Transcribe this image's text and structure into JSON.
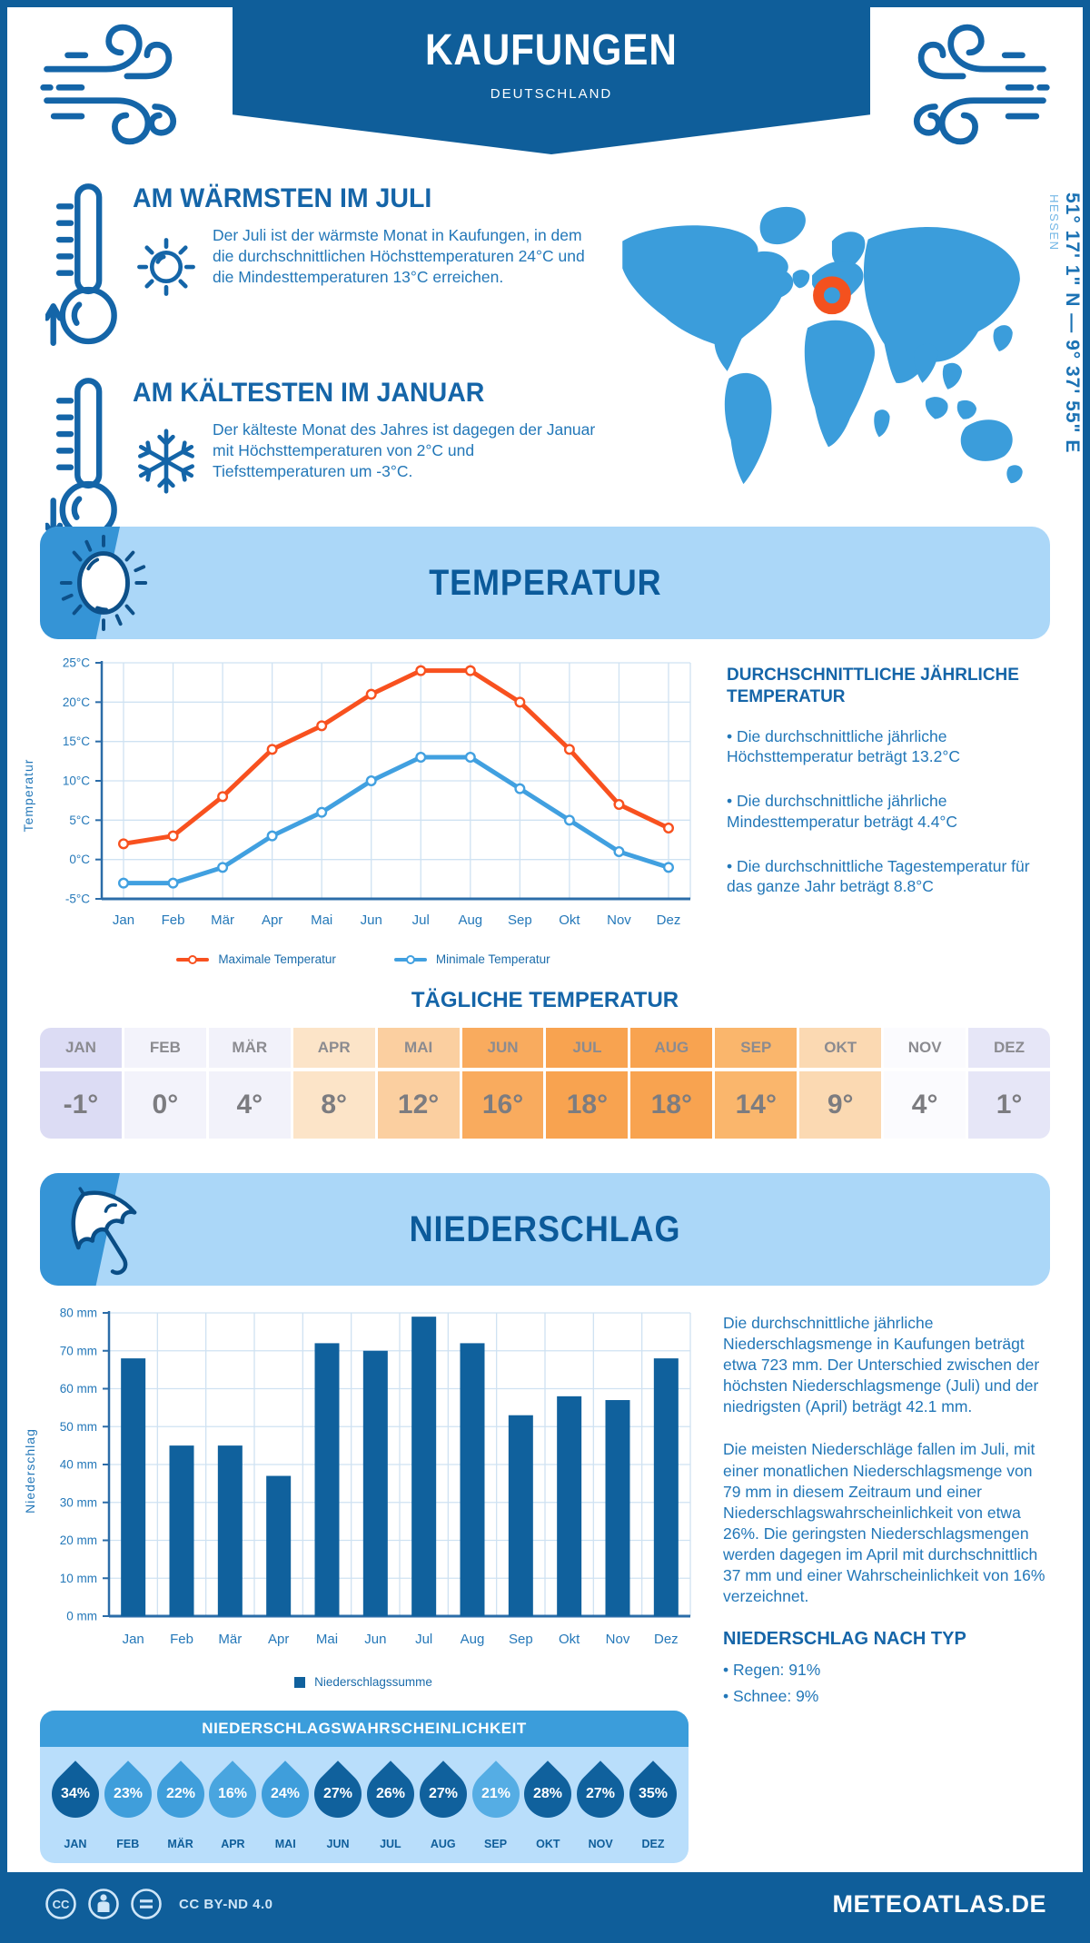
{
  "header": {
    "title": "KAUFUNGEN",
    "subtitle": "DEUTSCHLAND"
  },
  "intro": {
    "warm": {
      "title": "AM WÄRMSTEN IM JULI",
      "text": "Der Juli ist der wärmste Monat in Kaufungen, in dem die durchschnittlichen Höchsttemperaturen 24°C und die Mindesttemperaturen 13°C erreichen."
    },
    "cold": {
      "title": "AM KÄLTESTEN IM JANUAR",
      "text": "Der kälteste Monat des Jahres ist dagegen der Januar mit Höchsttemperaturen von 2°C und Tiefsttemperaturen um -3°C."
    }
  },
  "map": {
    "coords": "51° 17' 1\" N — 9° 37' 55\" E",
    "region": "HESSEN",
    "marker_color": "#f4511e",
    "land_color": "#3b9ddb"
  },
  "temperature": {
    "banner": "TEMPERATUR",
    "aside_title": "DURCHSCHNITTLICHE JÄHRLICHE TEMPERATUR",
    "bullets": [
      "• Die durchschnittliche jährliche Höchsttemperatur beträgt 13.2°C",
      "• Die durchschnittliche jährliche Mindesttemperatur beträgt 4.4°C",
      "• Die durchschnittliche Tagestemperatur für das ganze Jahr beträgt 8.8°C"
    ],
    "daily_title": "TÄGLICHE TEMPERATUR",
    "table": {
      "months": [
        "JAN",
        "FEB",
        "MÄR",
        "APR",
        "MAI",
        "JUN",
        "JUL",
        "AUG",
        "SEP",
        "OKT",
        "NOV",
        "DEZ"
      ],
      "values": [
        "-1°",
        "0°",
        "4°",
        "8°",
        "12°",
        "16°",
        "18°",
        "18°",
        "14°",
        "9°",
        "4°",
        "1°"
      ],
      "colors": [
        "#dcdcf4",
        "#f3f3fb",
        "#f2f2fa",
        "#fce4c8",
        "#fbcfa0",
        "#f9ab5e",
        "#f8a350",
        "#f8a350",
        "#fab66c",
        "#fbd9b2",
        "#fbfbfe",
        "#e6e6f7"
      ]
    }
  },
  "precipitation": {
    "banner": "NIEDERSCHLAG",
    "para1": "Die durchschnittliche jährliche Niederschlagsmenge in Kaufungen beträgt etwa 723 mm. Der Unterschied zwischen der höchsten Niederschlagsmenge (Juli) und der niedrigsten (April) beträgt 42.1 mm.",
    "para2": "Die meisten Niederschläge fallen im Juli, mit einer monatlichen Niederschlagsmenge von 79 mm in diesem Zeitraum und einer Niederschlagswahrscheinlichkeit von etwa 26%. Die geringsten Niederschlagsmengen werden dagegen im April mit durchschnittlich 37 mm und einer Wahrscheinlichkeit von 16% verzeichnet.",
    "type_title": "NIEDERSCHLAG NACH TYP",
    "types": [
      "• Regen: 91%",
      "• Schnee: 9%"
    ]
  },
  "probability": {
    "title": "NIEDERSCHLAGSWAHRSCHEINLICHKEIT",
    "months": [
      "JAN",
      "FEB",
      "MÄR",
      "APR",
      "MAI",
      "JUN",
      "JUL",
      "AUG",
      "SEP",
      "OKT",
      "NOV",
      "DEZ"
    ],
    "values": [
      "34%",
      "23%",
      "22%",
      "16%",
      "24%",
      "27%",
      "26%",
      "27%",
      "21%",
      "28%",
      "27%",
      "35%"
    ],
    "colors": [
      "#0e5f9b",
      "#3f9edb",
      "#3f9edb",
      "#49a5df",
      "#3f9edb",
      "#10619d",
      "#10619d",
      "#10619d",
      "#55ade4",
      "#10619d",
      "#10619d",
      "#0e5f9b"
    ]
  },
  "footer": {
    "license": "CC BY-ND 4.0",
    "site": "METEOATLAS.DE"
  },
  "chart_data": [
    {
      "type": "line",
      "title": "",
      "categories": [
        "Jan",
        "Feb",
        "Mär",
        "Apr",
        "Mai",
        "Jun",
        "Jul",
        "Aug",
        "Sep",
        "Okt",
        "Nov",
        "Dez"
      ],
      "series": [
        {
          "name": "Maximale Temperatur",
          "color": "#f8511f",
          "values": [
            2,
            3,
            8,
            14,
            17,
            21,
            24,
            24,
            20,
            14,
            7,
            4
          ]
        },
        {
          "name": "Minimale Temperatur",
          "color": "#41a0e0",
          "values": [
            -3,
            -3,
            -1,
            3,
            6,
            10,
            13,
            13,
            9,
            5,
            1,
            -1
          ]
        }
      ],
      "xlabel": "",
      "ylabel": "Temperatur",
      "ylim": [
        -5,
        25
      ],
      "ytick_step": 5,
      "ytick_suffix": "°C",
      "grid": true,
      "legend_position": "bottom"
    },
    {
      "type": "bar",
      "title": "",
      "categories": [
        "Jan",
        "Feb",
        "Mär",
        "Apr",
        "Mai",
        "Jun",
        "Jul",
        "Aug",
        "Sep",
        "Okt",
        "Nov",
        "Dez"
      ],
      "series": [
        {
          "name": "Niederschlagssumme",
          "color": "#10619d",
          "values": [
            68,
            45,
            45,
            37,
            72,
            70,
            79,
            72,
            53,
            58,
            57,
            68
          ]
        }
      ],
      "xlabel": "",
      "ylabel": "Niederschlag",
      "ylim": [
        0,
        80
      ],
      "ytick_step": 10,
      "ytick_suffix": " mm",
      "grid": true,
      "legend_position": "bottom"
    }
  ]
}
